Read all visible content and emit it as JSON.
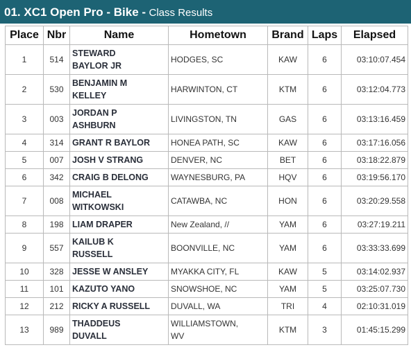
{
  "header": {
    "title": "01. XC1 Open Pro - Bike -",
    "subtitle": "Class Results"
  },
  "table": {
    "columns": [
      "Place",
      "Nbr",
      "Name",
      "Hometown",
      "Brand",
      "Laps",
      "Elapsed"
    ],
    "rows": [
      [
        "1",
        "514",
        "STEWARD BAYLOR JR",
        "HODGES, SC",
        "KAW",
        "6",
        "03:10:07.454"
      ],
      [
        "2",
        "530",
        "BENJAMIN M KELLEY",
        "HARWINTON, CT",
        "KTM",
        "6",
        "03:12:04.773"
      ],
      [
        "3",
        "003",
        "JORDAN P ASHBURN",
        "LIVINGSTON, TN",
        "GAS",
        "6",
        "03:13:16.459"
      ],
      [
        "4",
        "314",
        "GRANT R BAYLOR",
        "HONEA PATH, SC",
        "KAW",
        "6",
        "03:17:16.056"
      ],
      [
        "5",
        "007",
        "JOSH V STRANG",
        "DENVER, NC",
        "BET",
        "6",
        "03:18:22.879"
      ],
      [
        "6",
        "342",
        "CRAIG B DELONG",
        "WAYNESBURG, PA",
        "HQV",
        "6",
        "03:19:56.170"
      ],
      [
        "7",
        "008",
        "MICHAEL WITKOWSKI",
        "CATAWBA, NC",
        "HON",
        "6",
        "03:20:29.558"
      ],
      [
        "8",
        "198",
        "LIAM DRAPER",
        "New Zealand, //",
        "YAM",
        "6",
        "03:27:19.211"
      ],
      [
        "9",
        "557",
        "KAILUB K RUSSELL",
        "BOONVILLE, NC",
        "YAM",
        "6",
        "03:33:33.699"
      ],
      [
        "10",
        "328",
        "JESSE W ANSLEY",
        "MYAKKA CITY, FL",
        "KAW",
        "5",
        "03:14:02.937"
      ],
      [
        "11",
        "101",
        "KAZUTO YANO",
        "SNOWSHOE, NC",
        "YAM",
        "5",
        "03:25:07.730"
      ],
      [
        "12",
        "212",
        "RICKY A RUSSELL",
        "DUVALL, WA",
        "TRI",
        "4",
        "02:10:31.019"
      ],
      [
        "13",
        "989",
        "THADDEUS DUVALL",
        "WILLIAMSTOWN, WV",
        "KTM",
        "3",
        "01:45:15.299"
      ]
    ]
  }
}
